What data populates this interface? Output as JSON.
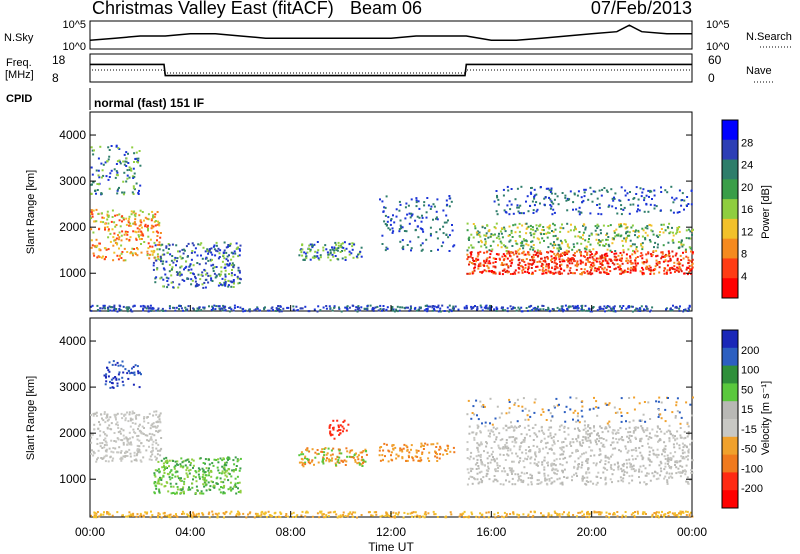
{
  "header": {
    "title": "Christmas Valley East (fitACF)",
    "beam": "Beam 06",
    "date": "07/Feb/2013"
  },
  "colors": {
    "noise_line": "#000000",
    "scatter_low": "#1a33d6",
    "scatter_mid": "#2f8f3a",
    "scatter_high": "#e01b0b",
    "ground_scatter": "#bdbdb8"
  },
  "chart_data": [
    {
      "type": "line",
      "name": "noise-panel",
      "left_labels": [
        "N.Sky"
      ],
      "right_labels": [
        "N.Search"
      ],
      "y_ticks_left": [
        "10^5",
        "10^0"
      ],
      "y_ticks_right": [
        "10^5",
        "10^0"
      ],
      "x": [
        0,
        1,
        2,
        3,
        4,
        5,
        6,
        7,
        8,
        9,
        10,
        11,
        12,
        13,
        14,
        15,
        16,
        17,
        18,
        19,
        20,
        21,
        21.5,
        22,
        23,
        24
      ],
      "series": [
        {
          "values": [
            1.9,
            2.0,
            2.1,
            2.1,
            2.2,
            2.2,
            2.1,
            2.0,
            2.0,
            2.0,
            2.0,
            2.0,
            2.0,
            2.1,
            2.1,
            2.1,
            1.9,
            1.9,
            2.0,
            2.1,
            2.2,
            2.3,
            2.6,
            2.3,
            2.2,
            2.2
          ]
        }
      ]
    },
    {
      "type": "line",
      "name": "frequency-panel",
      "left_labels": [
        "Freq.",
        "[MHz]"
      ],
      "right_labels": [
        "Nave"
      ],
      "y_ticks_left": [
        "18",
        "8"
      ],
      "y_ticks_right": [
        "60",
        "0"
      ],
      "ylim": [
        8,
        18
      ],
      "x": [
        0,
        2.95,
        3.0,
        14.95,
        15.0,
        24
      ],
      "series": [
        {
          "values": [
            14.3,
            14.3,
            10.3,
            10.3,
            14.3,
            14.3
          ]
        }
      ]
    },
    {
      "type": "table",
      "name": "cpid",
      "label": "CPID",
      "value": "normal (fast) 151 IF"
    },
    {
      "type": "heatmap",
      "name": "power-panel",
      "ylabel": "Slant Range [km]",
      "y_ticks": [
        1000,
        2000,
        3000,
        4000
      ],
      "ylim": [
        180,
        4500
      ],
      "colorbar": {
        "label": "Power [dB]",
        "ticks": [
          "4",
          "8",
          "12",
          "16",
          "20",
          "24",
          "28"
        ],
        "colors": [
          "#0000ff",
          "#2d3fb5",
          "#2e7d6a",
          "#3a9e48",
          "#8fce3f",
          "#f2c12a",
          "#f58a1f",
          "#ff3c14",
          "#ff0000"
        ]
      }
    },
    {
      "type": "heatmap",
      "name": "velocity-panel",
      "ylabel": "Slant Range [km]",
      "y_ticks": [
        1000,
        2000,
        3000,
        4000
      ],
      "ylim": [
        180,
        4500
      ],
      "colorbar": {
        "label": "Velocity [m s⁻¹]",
        "ticks": [
          "200",
          "100",
          "50",
          "15",
          "-15",
          "-50",
          "-100",
          "-200"
        ],
        "colors": [
          "#1a27b8",
          "#2c5fc0",
          "#2f8f3a",
          "#5ac83d",
          "#b8b8b5",
          "#c8c8c4",
          "#f0a12c",
          "#f07a1e",
          "#ff2a12",
          "#ff0000"
        ]
      },
      "xlabel": "Time UT",
      "x_ticks": [
        "00:00",
        "04:00",
        "08:00",
        "12:00",
        "16:00",
        "20:00",
        "00:00"
      ]
    }
  ]
}
